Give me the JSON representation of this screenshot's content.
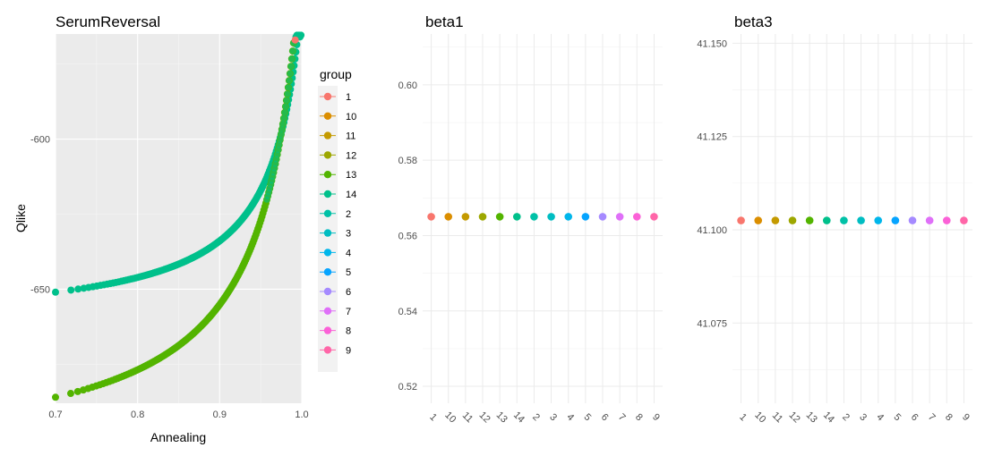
{
  "chart_data": [
    {
      "type": "scatter",
      "title": "SerumReversal",
      "xlabel": "Annealing",
      "ylabel": "Qlike",
      "xlim": [
        0.7,
        1.0
      ],
      "ylim": [
        -688,
        -565
      ],
      "xticks": [
        "0.7",
        "0.8",
        "0.9",
        "1.0"
      ],
      "yticks": [
        "-650",
        "-600"
      ],
      "grid": true,
      "series": [
        {
          "name": "14",
          "color": "#00C08B",
          "x_range": [
            0.7,
            0.995
          ],
          "y_start": -651,
          "y_end": -566
        },
        {
          "name": "13",
          "color": "#53B400",
          "x_range": [
            0.7,
            0.99
          ],
          "y_start": -686,
          "y_end": -568
        },
        {
          "name": "1",
          "color": "#F8766D",
          "x": [
            0.992
          ],
          "y": [
            -567
          ]
        }
      ]
    },
    {
      "type": "scatter",
      "title": "beta1",
      "xlabel": "",
      "ylabel": "",
      "ylim": [
        0.5155,
        0.6135
      ],
      "yticks": [
        "0.52",
        "0.54",
        "0.56",
        "0.58",
        "0.60"
      ],
      "grid": true,
      "categories": [
        "1",
        "10",
        "11",
        "12",
        "13",
        "14",
        "2",
        "3",
        "4",
        "5",
        "6",
        "7",
        "8",
        "9"
      ],
      "values": [
        0.565,
        0.565,
        0.565,
        0.565,
        0.565,
        0.565,
        0.565,
        0.565,
        0.565,
        0.565,
        0.565,
        0.565,
        0.565,
        0.565
      ]
    },
    {
      "type": "scatter",
      "title": "beta3",
      "xlabel": "",
      "ylabel": "",
      "ylim": [
        41.0535,
        41.1525
      ],
      "yticks": [
        "41.075",
        "41.100",
        "41.125",
        "41.150"
      ],
      "grid": true,
      "categories": [
        "1",
        "10",
        "11",
        "12",
        "13",
        "14",
        "2",
        "3",
        "4",
        "5",
        "6",
        "7",
        "8",
        "9"
      ],
      "values": [
        41.1025,
        41.1025,
        41.1025,
        41.1025,
        41.1025,
        41.1025,
        41.1025,
        41.1025,
        41.1025,
        41.1025,
        41.1025,
        41.1025,
        41.1025,
        41.1025
      ]
    }
  ],
  "legend": {
    "title": "group",
    "position": "right",
    "items": [
      {
        "label": "1",
        "color": "#F8766D"
      },
      {
        "label": "10",
        "color": "#DB8E00"
      },
      {
        "label": "11",
        "color": "#C49A00"
      },
      {
        "label": "12",
        "color": "#9DA700"
      },
      {
        "label": "13",
        "color": "#53B400"
      },
      {
        "label": "14",
        "color": "#00C08B"
      },
      {
        "label": "2",
        "color": "#00C1A7"
      },
      {
        "label": "3",
        "color": "#00BDC2"
      },
      {
        "label": "4",
        "color": "#00B6EB"
      },
      {
        "label": "5",
        "color": "#06A4FF"
      },
      {
        "label": "6",
        "color": "#A58AFF"
      },
      {
        "label": "7",
        "color": "#DF70F8"
      },
      {
        "label": "8",
        "color": "#FB61D7"
      },
      {
        "label": "9",
        "color": "#FF66A8"
      }
    ]
  }
}
